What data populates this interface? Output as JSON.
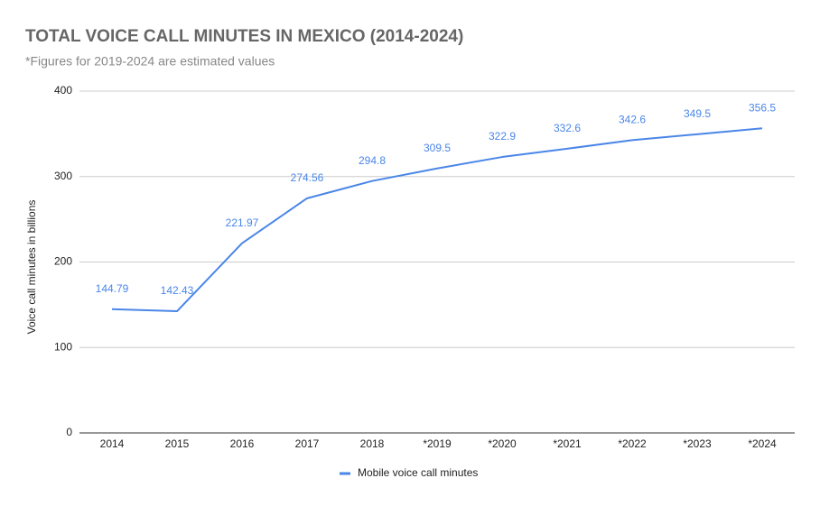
{
  "chart_data": {
    "type": "line",
    "title": "TOTAL VOICE CALL MINUTES IN MEXICO (2014-2024)",
    "subtitle": "*Figures for 2019-2024 are estimated values",
    "y_label": "Voice call minutes in billions",
    "categories": [
      "2014",
      "2015",
      "2016",
      "2017",
      "2018",
      "*2019",
      "*2020",
      "*2021",
      "*2022",
      "*2023",
      "*2024"
    ],
    "series": [
      {
        "name": "Mobile voice call minutes",
        "color": "#4a86e8",
        "values": [
          144.79,
          142.43,
          221.97,
          274.56,
          294.8,
          309.5,
          322.9,
          332.6,
          342.6,
          349.5,
          356.5
        ]
      }
    ],
    "ylim": [
      0,
      400
    ],
    "yticks": [
      0,
      100,
      200,
      300,
      400
    ],
    "grid": true,
    "legend": "bottom"
  }
}
